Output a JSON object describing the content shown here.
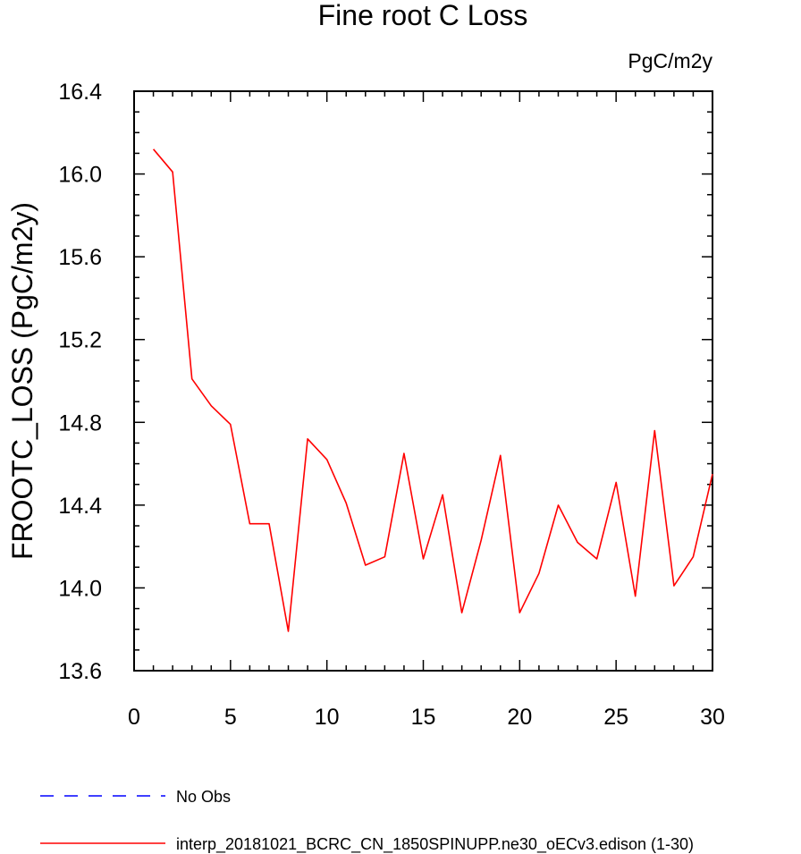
{
  "chart_data": {
    "type": "line",
    "title": "Fine root C Loss",
    "units_label": "PgC/m2y",
    "ylabel": "FROOTC_LOSS  (PgC/m2y)",
    "xlabel": "",
    "xlim": [
      0,
      30
    ],
    "ylim": [
      13.6,
      16.4
    ],
    "xticks": [
      0,
      5,
      10,
      15,
      20,
      25,
      30
    ],
    "xtick_labels": [
      "0",
      "5",
      "10",
      "15",
      "20",
      "25",
      "30"
    ],
    "yticks": [
      13.6,
      14.0,
      14.4,
      14.8,
      15.2,
      15.6,
      16.0,
      16.4
    ],
    "ytick_labels": [
      "13.6",
      "14.0",
      "14.4",
      "14.8",
      "15.2",
      "15.6",
      "16.0",
      "16.4"
    ],
    "grid": false,
    "legend_position": "bottom",
    "series": [
      {
        "name": "interp_20181021_BCRC_CN_1850SPINUPP.ne30_oECv3.edison (1-30)",
        "color": "#ff0000",
        "style": "solid",
        "x": [
          1,
          2,
          3,
          4,
          5,
          6,
          7,
          8,
          9,
          10,
          11,
          12,
          13,
          14,
          15,
          16,
          17,
          18,
          19,
          20,
          21,
          22,
          23,
          24,
          25,
          26,
          27,
          28,
          29,
          30
        ],
        "y": [
          16.12,
          16.01,
          15.01,
          14.88,
          14.79,
          14.31,
          14.31,
          13.79,
          14.72,
          14.62,
          14.41,
          14.11,
          14.15,
          14.65,
          14.14,
          14.45,
          13.88,
          14.23,
          14.64,
          13.88,
          14.07,
          14.4,
          14.22,
          14.14,
          14.51,
          13.96,
          14.76,
          14.01,
          14.15,
          14.55
        ]
      }
    ],
    "legend": [
      {
        "label": "No Obs",
        "color": "#0000ff",
        "style": "dashed"
      },
      {
        "label": "interp_20181021_BCRC_CN_1850SPINUPP.ne30_oECv3.edison (1-30)",
        "color": "#ff0000",
        "style": "solid"
      }
    ]
  }
}
